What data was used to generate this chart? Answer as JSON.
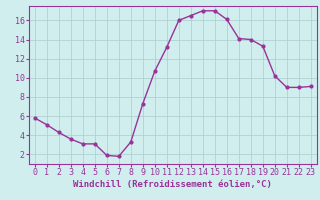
{
  "x": [
    0,
    1,
    2,
    3,
    4,
    5,
    6,
    7,
    8,
    9,
    10,
    11,
    12,
    13,
    14,
    15,
    16,
    17,
    18,
    19,
    20,
    21,
    22,
    23
  ],
  "y": [
    5.8,
    5.1,
    4.3,
    3.6,
    3.1,
    3.1,
    1.9,
    1.8,
    3.3,
    7.3,
    10.7,
    13.2,
    16.0,
    16.5,
    17.0,
    17.0,
    16.1,
    14.1,
    14.0,
    13.3,
    10.2,
    9.0,
    9.0,
    9.1
  ],
  "line_color": "#993399",
  "marker": "o",
  "marker_size": 2.0,
  "background_color": "#d0eeee",
  "grid_color": "#aacccc",
  "xlabel": "Windchill (Refroidissement éolien,°C)",
  "xlabel_fontsize": 6.5,
  "tick_fontsize": 6.0,
  "ylim": [
    1,
    17.5
  ],
  "yticks": [
    2,
    4,
    6,
    8,
    10,
    12,
    14,
    16
  ],
  "xlim": [
    -0.5,
    23.5
  ],
  "xticks": [
    0,
    1,
    2,
    3,
    4,
    5,
    6,
    7,
    8,
    9,
    10,
    11,
    12,
    13,
    14,
    15,
    16,
    17,
    18,
    19,
    20,
    21,
    22,
    23
  ]
}
